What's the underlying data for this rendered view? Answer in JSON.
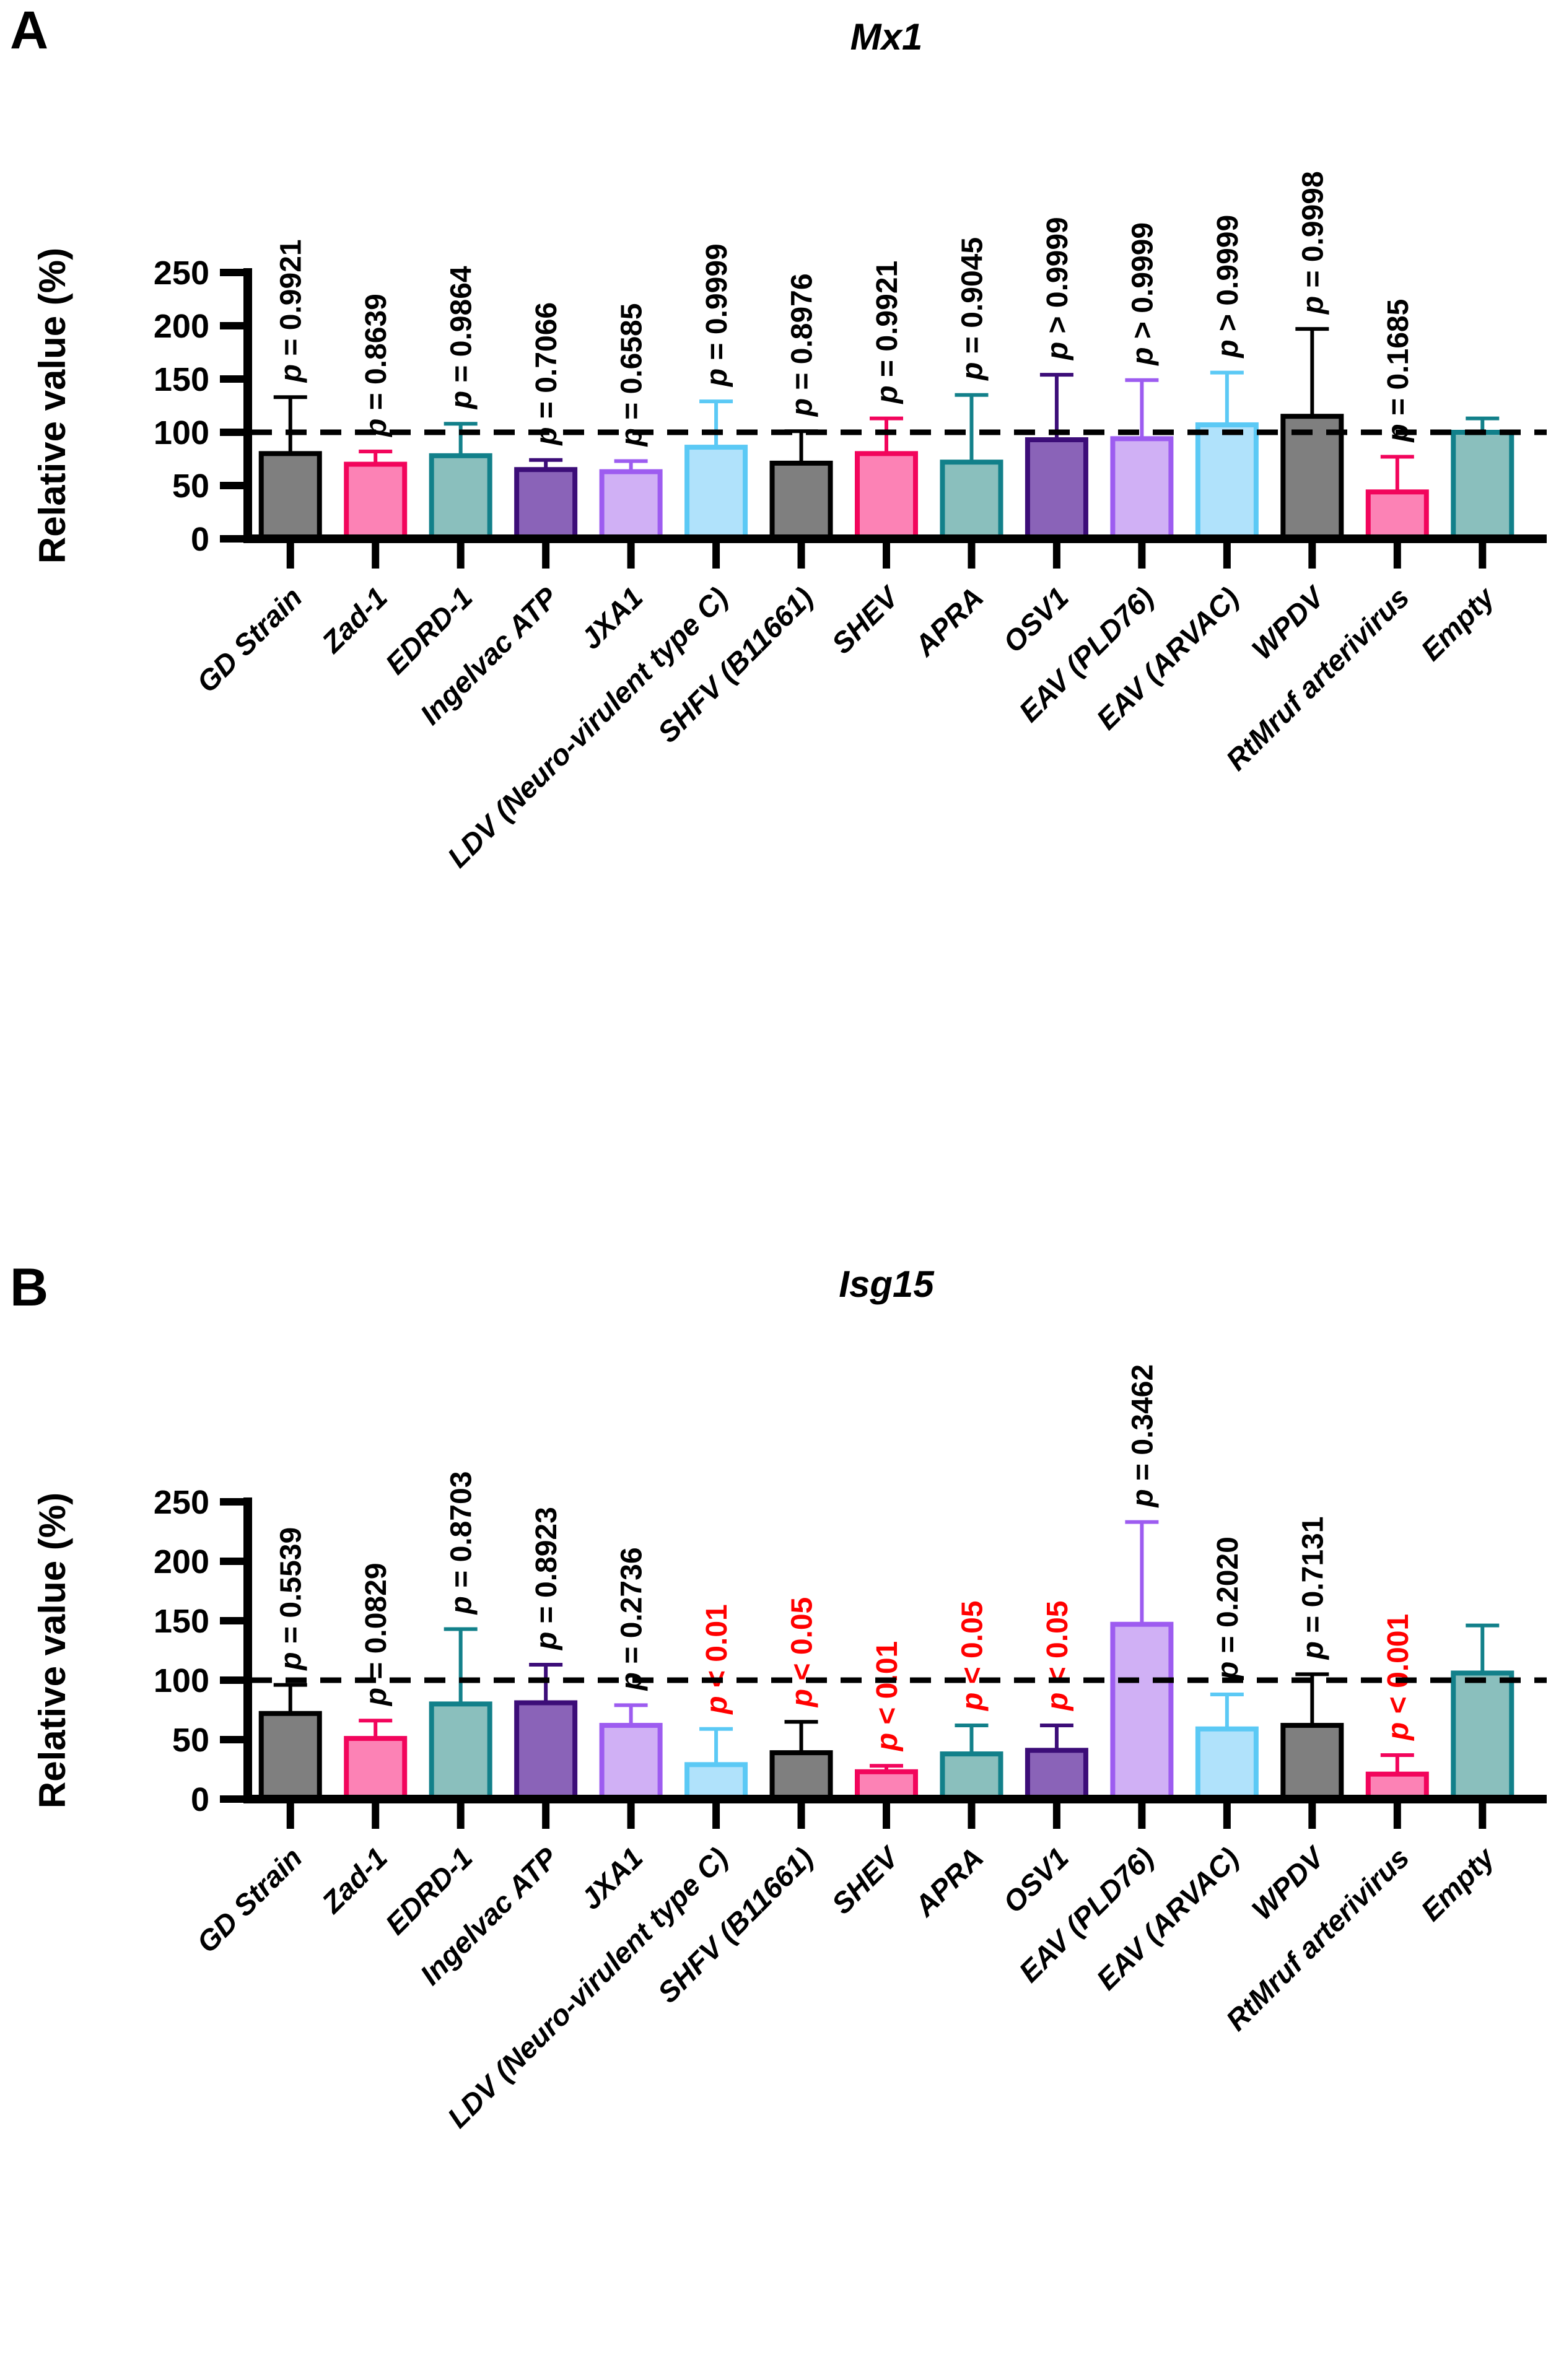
{
  "figure": {
    "panels": [
      {
        "label": "A"
      },
      {
        "label": "B"
      }
    ]
  },
  "colors": {
    "reference_line": "#000000",
    "significant_p": "#ff0000",
    "default_p": "#000000",
    "bar_style_cycle": [
      {
        "name": "gray",
        "fill": "#7f7f7f",
        "stroke": "#000000"
      },
      {
        "name": "pink",
        "fill": "#fc82b5",
        "stroke": "#f2055c"
      },
      {
        "name": "teal",
        "fill": "#8abfbd",
        "stroke": "#12808a"
      },
      {
        "name": "dark-purple",
        "fill": "#8a63b8",
        "stroke": "#3c0d78"
      },
      {
        "name": "light-purple",
        "fill": "#d0b0f5",
        "stroke": "#9d5cf0"
      },
      {
        "name": "light-blue",
        "fill": "#b0e2fb",
        "stroke": "#5bc9f5"
      }
    ]
  },
  "chart_data": [
    {
      "type": "bar",
      "title": "Mx1",
      "xlabel": "",
      "ylabel": "Relative value (%)",
      "ylim": [
        0,
        250
      ],
      "yticks": [
        0,
        50,
        100,
        150,
        200,
        250
      ],
      "reference_line": 100,
      "grid": false,
      "legend": "none",
      "error_bars": "upper SD",
      "categories": [
        "GD Strain",
        "Zad-1",
        "EDRD-1",
        "Ingelvac ATP",
        "JXA1",
        "LDV (Neuro-virulent type C)",
        "SHFV (B11661)",
        "SHEV",
        "APRA",
        "OSV1",
        "EAV (PLD76)",
        "EAV (ARVAC)",
        "WPDV",
        "RtMruf arterivirus",
        "Empty"
      ],
      "values": [
        80,
        70,
        78,
        65,
        63,
        86,
        71,
        80,
        72,
        93,
        94,
        107,
        115,
        44,
        100
      ],
      "errors_upper": [
        53,
        12,
        30,
        9,
        10,
        43,
        30,
        33,
        63,
        61,
        55,
        49,
        82,
        33,
        13
      ],
      "p_labels": [
        "p = 0.9921",
        "p = 0.8639",
        "p = 0.9864",
        "p = 0.7066",
        "p = 0.6585",
        "p = 0.9999",
        "p = 0.8976",
        "p = 0.9921",
        "p = 0.9045",
        "p > 0.9999",
        "p > 0.9999",
        "p > 0.9999",
        "p = 0.9998",
        "p = 0.1685",
        ""
      ],
      "p_label_colors": [
        "#000000",
        "#000000",
        "#000000",
        "#000000",
        "#000000",
        "#000000",
        "#000000",
        "#000000",
        "#000000",
        "#000000",
        "#000000",
        "#000000",
        "#000000",
        "#000000",
        ""
      ]
    },
    {
      "type": "bar",
      "title": "Isg15",
      "xlabel": "",
      "ylabel": "Relative value (%)",
      "ylim": [
        0,
        250
      ],
      "yticks": [
        0,
        50,
        100,
        150,
        200,
        250
      ],
      "reference_line": 100,
      "grid": false,
      "legend": "none",
      "error_bars": "upper SD",
      "categories": [
        "GD Strain",
        "Zad-1",
        "EDRD-1",
        "Ingelvac ATP",
        "JXA1",
        "LDV (Neuro-virulent type C)",
        "SHFV (B11661)",
        "SHEV",
        "APRA",
        "OSV1",
        "EAV (PLD76)",
        "EAV (ARVAC)",
        "WPDV",
        "RtMruf arterivirus",
        "Empty"
      ],
      "values": [
        72,
        51,
        80,
        81,
        62,
        29,
        39,
        23,
        38,
        41,
        147,
        59,
        62,
        21,
        106
      ],
      "errors_upper": [
        24,
        15,
        63,
        32,
        17,
        30,
        26,
        5,
        24,
        21,
        86,
        29,
        43,
        16,
        40
      ],
      "p_labels": [
        "p = 0.5539",
        "p = 0.0829",
        "p = 0.8703",
        "p = 0.8923",
        "p = 0.2736",
        "p < 0.01",
        "p < 0.05",
        "p < 0.01",
        "p < 0.05",
        "p < 0.05",
        "p = 0.3462",
        "p = 0.2020",
        "p = 0.7131",
        "p < 0.001",
        ""
      ],
      "p_label_colors": [
        "#000000",
        "#000000",
        "#000000",
        "#000000",
        "#000000",
        "#ff0000",
        "#ff0000",
        "#ff0000",
        "#ff0000",
        "#ff0000",
        "#000000",
        "#000000",
        "#000000",
        "#ff0000",
        ""
      ]
    }
  ]
}
